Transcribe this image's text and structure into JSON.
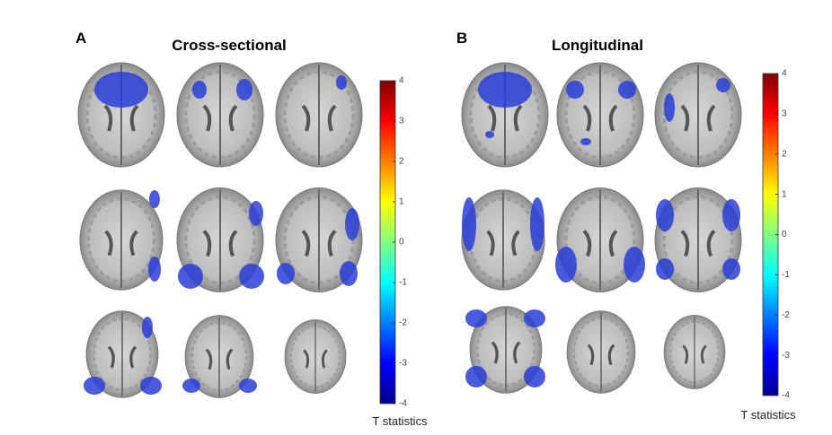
{
  "panels": [
    {
      "label": "A",
      "title": "Cross-sectional",
      "colorbar": {
        "range": [
          -4,
          4
        ],
        "ticks": [
          4,
          3,
          2,
          1,
          0,
          -1,
          -2,
          -3,
          -4
        ],
        "label": "T statistics"
      }
    },
    {
      "label": "B",
      "title": "Longitudinal",
      "colorbar": {
        "range": [
          -4,
          4
        ],
        "ticks": [
          4,
          3,
          2,
          1,
          0,
          -1,
          -2,
          -3,
          -4
        ],
        "label": "T statistics"
      }
    }
  ]
}
